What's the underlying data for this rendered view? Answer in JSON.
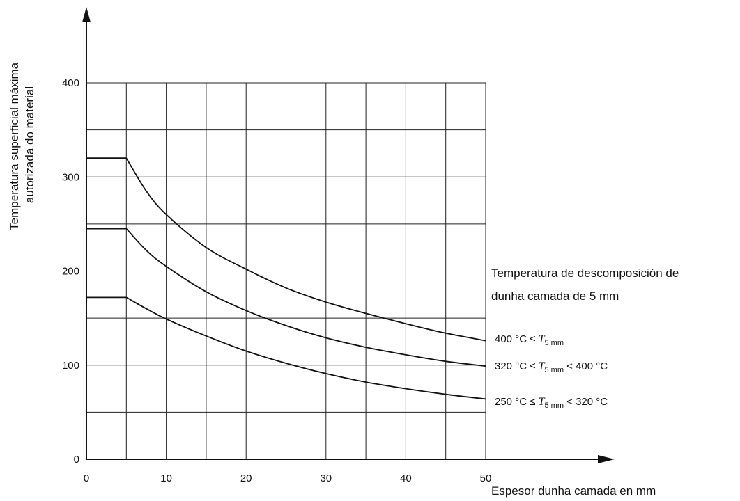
{
  "chart_data": {
    "type": "line",
    "xlabel": "Espesor dunha camada  en mm",
    "ylabel_lines": [
      "Temperatura superficial máxima",
      "autorizada do material"
    ],
    "xlim": [
      0,
      50
    ],
    "ylim": [
      0,
      400
    ],
    "x_ticks": [
      "0",
      "10",
      "20",
      "30",
      "40",
      "50"
    ],
    "y_ticks": [
      "0",
      "100",
      "200",
      "300",
      "400"
    ],
    "grid": true,
    "x_grid_step": 5,
    "y_grid_step": 50,
    "legend_title_lines": [
      "Temperatura de descomposición de",
      "dunha camada de 5 mm"
    ],
    "series": [
      {
        "label_pre": "400 °C ≤ ",
        "label_sym": "T",
        "label_sub": "5 mm",
        "label_post": "",
        "points": [
          [
            0,
            320
          ],
          [
            5,
            320
          ],
          [
            7.5,
            285
          ],
          [
            10,
            260
          ],
          [
            15,
            225
          ],
          [
            20,
            202
          ],
          [
            25,
            182
          ],
          [
            30,
            167
          ],
          [
            35,
            155
          ],
          [
            40,
            144
          ],
          [
            45,
            134
          ],
          [
            50,
            126
          ]
        ]
      },
      {
        "label_pre": "320 °C ≤ ",
        "label_sym": "T",
        "label_sub": "5 mm",
        "label_post": " < 400 °C",
        "points": [
          [
            0,
            245
          ],
          [
            5,
            245
          ],
          [
            7.5,
            222
          ],
          [
            10,
            205
          ],
          [
            15,
            178
          ],
          [
            20,
            158
          ],
          [
            25,
            142
          ],
          [
            30,
            129
          ],
          [
            35,
            119
          ],
          [
            40,
            111
          ],
          [
            45,
            104
          ],
          [
            50,
            99
          ]
        ]
      },
      {
        "label_pre": "250 °C ≤ ",
        "label_sym": "T",
        "label_sub": "5 mm",
        "label_post": " < 320 °C",
        "points": [
          [
            0,
            172
          ],
          [
            5,
            172
          ],
          [
            7.5,
            160
          ],
          [
            10,
            149
          ],
          [
            15,
            131
          ],
          [
            20,
            115
          ],
          [
            25,
            102
          ],
          [
            30,
            91
          ],
          [
            35,
            82
          ],
          [
            40,
            75
          ],
          [
            45,
            69
          ],
          [
            50,
            64
          ]
        ]
      }
    ]
  }
}
